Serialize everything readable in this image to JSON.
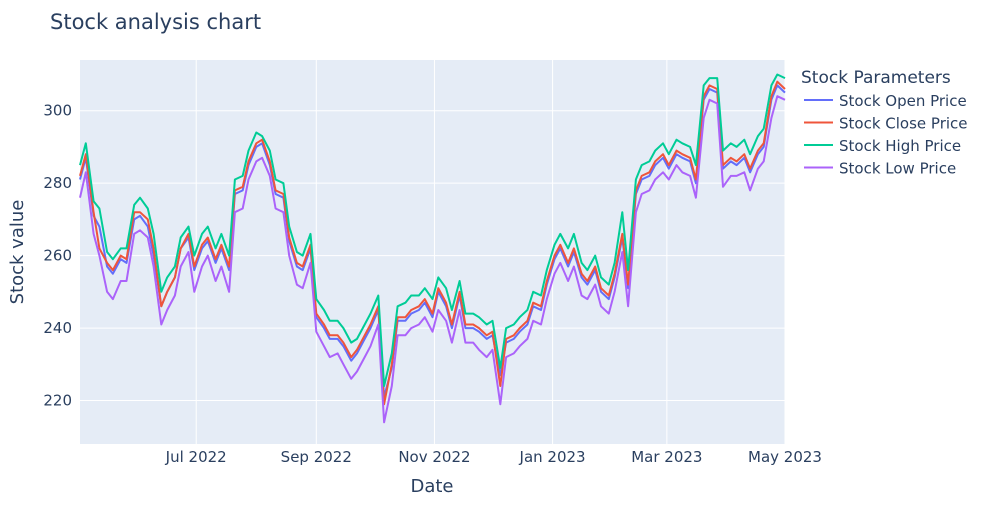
{
  "chart_data": {
    "type": "line",
    "title": "Stock analysis chart",
    "xlabel": "Date",
    "ylabel": "Stock value",
    "legend_title": "Stock Parameters",
    "legend_position": "right",
    "grid": true,
    "plot_background": "#e5ecf6",
    "x_ticks": [
      "Jul 2022",
      "Sep 2022",
      "Nov 2022",
      "Jan 2023",
      "Mar 2023",
      "May 2023"
    ],
    "x_tick_dates": [
      "2022-07-01",
      "2022-09-01",
      "2022-11-01",
      "2023-01-01",
      "2023-03-01",
      "2023-05-01"
    ],
    "xlim": [
      "2022-05-02",
      "2023-05-01"
    ],
    "y_ticks": [
      220,
      240,
      260,
      280,
      300
    ],
    "ylim": [
      208,
      314
    ],
    "x": [
      "2022-05-02",
      "2022-05-05",
      "2022-05-09",
      "2022-05-12",
      "2022-05-16",
      "2022-05-19",
      "2022-05-23",
      "2022-05-26",
      "2022-05-30",
      "2022-06-02",
      "2022-06-06",
      "2022-06-09",
      "2022-06-13",
      "2022-06-16",
      "2022-06-20",
      "2022-06-23",
      "2022-06-27",
      "2022-06-30",
      "2022-07-04",
      "2022-07-07",
      "2022-07-11",
      "2022-07-14",
      "2022-07-18",
      "2022-07-21",
      "2022-07-25",
      "2022-07-28",
      "2022-08-01",
      "2022-08-04",
      "2022-08-08",
      "2022-08-11",
      "2022-08-15",
      "2022-08-18",
      "2022-08-22",
      "2022-08-25",
      "2022-08-29",
      "2022-09-01",
      "2022-09-05",
      "2022-09-08",
      "2022-09-12",
      "2022-09-15",
      "2022-09-19",
      "2022-09-22",
      "2022-09-26",
      "2022-09-29",
      "2022-10-03",
      "2022-10-06",
      "2022-10-10",
      "2022-10-13",
      "2022-10-17",
      "2022-10-20",
      "2022-10-24",
      "2022-10-27",
      "2022-10-31",
      "2022-11-03",
      "2022-11-07",
      "2022-11-10",
      "2022-11-14",
      "2022-11-17",
      "2022-11-21",
      "2022-11-24",
      "2022-11-28",
      "2022-12-01",
      "2022-12-05",
      "2022-12-08",
      "2022-12-12",
      "2022-12-15",
      "2022-12-19",
      "2022-12-22",
      "2022-12-26",
      "2022-12-29",
      "2023-01-02",
      "2023-01-05",
      "2023-01-09",
      "2023-01-12",
      "2023-01-16",
      "2023-01-19",
      "2023-01-23",
      "2023-01-26",
      "2023-01-30",
      "2023-02-02",
      "2023-02-06",
      "2023-02-09",
      "2023-02-13",
      "2023-02-16",
      "2023-02-20",
      "2023-02-23",
      "2023-02-27",
      "2023-03-02",
      "2023-03-06",
      "2023-03-09",
      "2023-03-13",
      "2023-03-16",
      "2023-03-20",
      "2023-03-23",
      "2023-03-27",
      "2023-03-30",
      "2023-04-03",
      "2023-04-06",
      "2023-04-10",
      "2023-04-13",
      "2023-04-17",
      "2023-04-20",
      "2023-04-24",
      "2023-04-27",
      "2023-05-01"
    ],
    "series": [
      {
        "name": "Stock Open Price",
        "color": "#636efa",
        "values": [
          281,
          287,
          271,
          268,
          257,
          255,
          259,
          258,
          270,
          271,
          268,
          260,
          246,
          250,
          254,
          262,
          265,
          256,
          262,
          264,
          258,
          262,
          256,
          277,
          278,
          285,
          290,
          291,
          285,
          277,
          276,
          264,
          257,
          256,
          262,
          243,
          240,
          237,
          237,
          235,
          231,
          233,
          237,
          240,
          245,
          221,
          229,
          242,
          242,
          244,
          245,
          247,
          243,
          250,
          246,
          240,
          249,
          240,
          240,
          239,
          237,
          238,
          227,
          236,
          237,
          239,
          241,
          246,
          245,
          252,
          259,
          262,
          257,
          261,
          254,
          252,
          256,
          250,
          248,
          254,
          265,
          251,
          277,
          281,
          282,
          285,
          287,
          284,
          288,
          287,
          286,
          280,
          303,
          306,
          305,
          284,
          286,
          285,
          287,
          283,
          288,
          290,
          303,
          307,
          305
        ]
      },
      {
        "name": "Stock Close Price",
        "color": "#ef553b",
        "values": [
          282,
          288,
          272,
          262,
          258,
          256,
          260,
          259,
          272,
          272,
          270,
          262,
          246,
          250,
          254,
          262,
          266,
          257,
          263,
          265,
          259,
          263,
          257,
          278,
          279,
          286,
          291,
          292,
          286,
          278,
          277,
          265,
          258,
          257,
          263,
          244,
          241,
          238,
          238,
          236,
          232,
          234,
          238,
          241,
          246,
          219,
          230,
          243,
          243,
          245,
          246,
          248,
          244,
          251,
          247,
          241,
          250,
          241,
          241,
          240,
          238,
          239,
          224,
          237,
          238,
          240,
          242,
          247,
          246,
          253,
          260,
          263,
          258,
          262,
          255,
          253,
          257,
          251,
          249,
          255,
          266,
          252,
          278,
          282,
          283,
          286,
          288,
          285,
          289,
          288,
          287,
          281,
          304,
          307,
          306,
          285,
          287,
          286,
          288,
          284,
          289,
          291,
          304,
          308,
          306
        ]
      },
      {
        "name": "Stock High Price",
        "color": "#00cc96",
        "values": [
          285,
          291,
          275,
          273,
          261,
          259,
          262,
          262,
          274,
          276,
          273,
          266,
          250,
          254,
          257,
          265,
          268,
          260,
          266,
          268,
          262,
          266,
          260,
          281,
          282,
          289,
          294,
          293,
          289,
          281,
          280,
          268,
          261,
          260,
          266,
          248,
          245,
          242,
          242,
          240,
          236,
          237,
          241,
          244,
          249,
          224,
          233,
          246,
          247,
          249,
          249,
          251,
          248,
          254,
          251,
          245,
          253,
          244,
          244,
          243,
          241,
          242,
          229,
          240,
          241,
          243,
          245,
          250,
          249,
          256,
          263,
          266,
          262,
          266,
          258,
          256,
          260,
          254,
          252,
          258,
          272,
          256,
          281,
          285,
          286,
          289,
          291,
          288,
          292,
          291,
          290,
          285,
          307,
          309,
          309,
          289,
          291,
          290,
          292,
          288,
          293,
          295,
          307,
          310,
          309
        ]
      },
      {
        "name": "Stock Low Price",
        "color": "#ab63fa",
        "values": [
          276,
          283,
          266,
          260,
          250,
          248,
          253,
          253,
          266,
          267,
          265,
          257,
          241,
          245,
          249,
          257,
          261,
          250,
          257,
          260,
          253,
          257,
          250,
          272,
          273,
          281,
          286,
          287,
          282,
          273,
          272,
          260,
          252,
          251,
          258,
          239,
          235,
          232,
          233,
          230,
          226,
          228,
          232,
          235,
          241,
          214,
          224,
          238,
          238,
          240,
          241,
          243,
          239,
          245,
          242,
          236,
          245,
          236,
          236,
          234,
          232,
          234,
          219,
          232,
          233,
          235,
          237,
          242,
          241,
          248,
          255,
          258,
          253,
          257,
          249,
          248,
          252,
          246,
          244,
          250,
          261,
          246,
          272,
          277,
          278,
          281,
          283,
          281,
          285,
          283,
          282,
          276,
          298,
          303,
          302,
          279,
          282,
          282,
          283,
          278,
          284,
          286,
          298,
          304,
          303
        ]
      }
    ]
  }
}
